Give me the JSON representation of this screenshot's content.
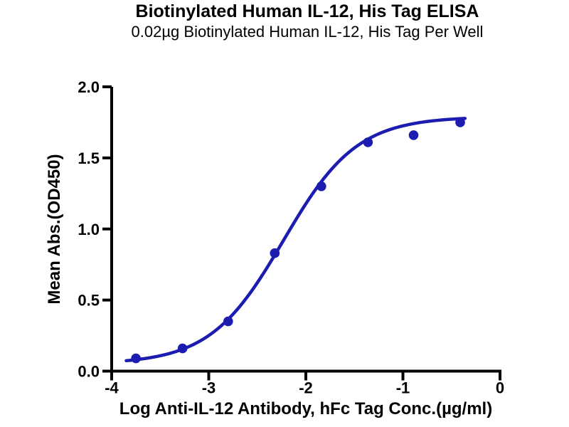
{
  "chart_data": {
    "type": "scatter",
    "title": "Biotinylated Human IL-12, His Tag ELISA",
    "subtitle": "0.02µg Biotinylated Human IL-12, His Tag Per Well",
    "xlabel": "Log Anti-IL-12 Antibody, hFc Tag Conc.(µg/ml)",
    "ylabel": "Mean Abs.(OD450)",
    "xlim": [
      -4,
      0
    ],
    "ylim": [
      0,
      2
    ],
    "xticks": [
      -4,
      -3,
      -2,
      -1,
      0
    ],
    "xtick_labels": [
      "-4",
      "-3",
      "-2",
      "-1",
      "0"
    ],
    "yticks": [
      0,
      0.5,
      1,
      1.5,
      2
    ],
    "ytick_labels": [
      "0.0",
      "0.5",
      "1.0",
      "1.5",
      "2.0"
    ],
    "x": [
      -3.75,
      -3.27,
      -2.8,
      -2.32,
      -1.84,
      -1.36,
      -0.89,
      -0.41
    ],
    "y": [
      0.09,
      0.16,
      0.35,
      0.83,
      1.3,
      1.61,
      1.66,
      1.75
    ],
    "fit_curve": {
      "model": "4PL",
      "bottom": 0.05,
      "top": 1.79,
      "log_ec50": -2.23,
      "hill": 1.15,
      "x_start": -3.85,
      "x_end": -0.36
    },
    "colors": {
      "points": "#1c1cb0",
      "line": "#1c1cb0",
      "axis": "#000000",
      "text": "#000000",
      "background": "#ffffff"
    },
    "grid": false,
    "legend": "none"
  }
}
